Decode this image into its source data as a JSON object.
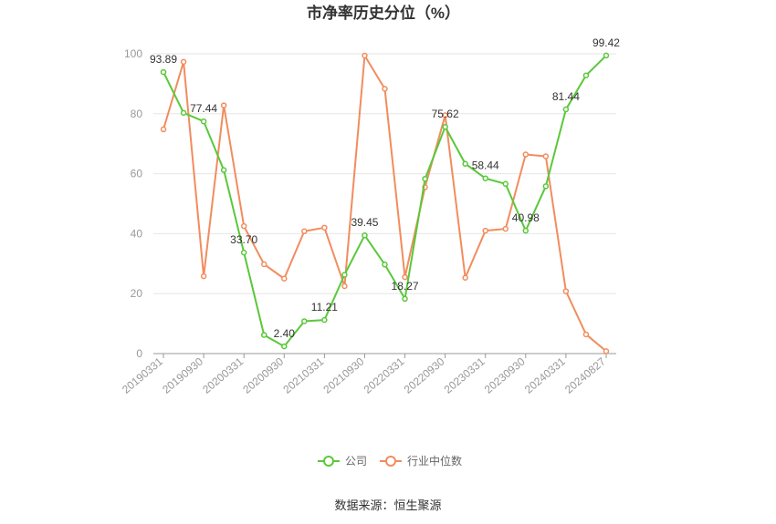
{
  "chart_data": {
    "type": "line",
    "title": "市净率历史分位（%）",
    "ylim": [
      0,
      100
    ],
    "yticks": [
      0,
      20,
      40,
      60,
      80,
      100
    ],
    "x": [
      "20190331",
      "20190630",
      "20190930",
      "20191231",
      "20200331",
      "20200630",
      "20200930",
      "20201231",
      "20210331",
      "20210630",
      "20210930",
      "20211231",
      "20220331",
      "20220630",
      "20220930",
      "20221231",
      "20230331",
      "20230630",
      "20230930",
      "20231231",
      "20240331",
      "20240630",
      "20240827"
    ],
    "xtick_labels": [
      "20190331",
      "20190930",
      "20200331",
      "20200930",
      "20210331",
      "20210930",
      "20220331",
      "20220930",
      "20230331",
      "20230930",
      "20240331",
      "20240827"
    ],
    "series": [
      {
        "name": "公司",
        "color": "#5ac83a",
        "values": [
          93.89,
          80.3,
          77.44,
          61.2,
          33.7,
          6.2,
          2.4,
          10.8,
          11.21,
          26.3,
          39.45,
          29.7,
          18.27,
          58.3,
          75.62,
          63.3,
          58.44,
          56.6,
          40.98,
          55.8,
          81.44,
          92.8,
          99.42
        ],
        "labels": {
          "0": "93.89",
          "2": "77.44",
          "4": "33.70",
          "6": "2.40",
          "8": "11.21",
          "10": "39.45",
          "12": "18.27",
          "14": "75.62",
          "16": "58.44",
          "18": "40.98",
          "20": "81.44",
          "22": "99.42"
        }
      },
      {
        "name": "行业中位数",
        "color": "#f28c5e",
        "values": [
          74.8,
          97.3,
          25.8,
          82.8,
          42.5,
          29.8,
          25.0,
          40.8,
          42.0,
          22.5,
          99.4,
          88.3,
          25.5,
          55.5,
          79.5,
          25.3,
          41.0,
          41.6,
          66.4,
          65.8,
          20.8,
          6.4,
          0.8
        ]
      }
    ],
    "legend_position": "bottom",
    "grid": true
  },
  "source": "数据来源：恒生聚源"
}
